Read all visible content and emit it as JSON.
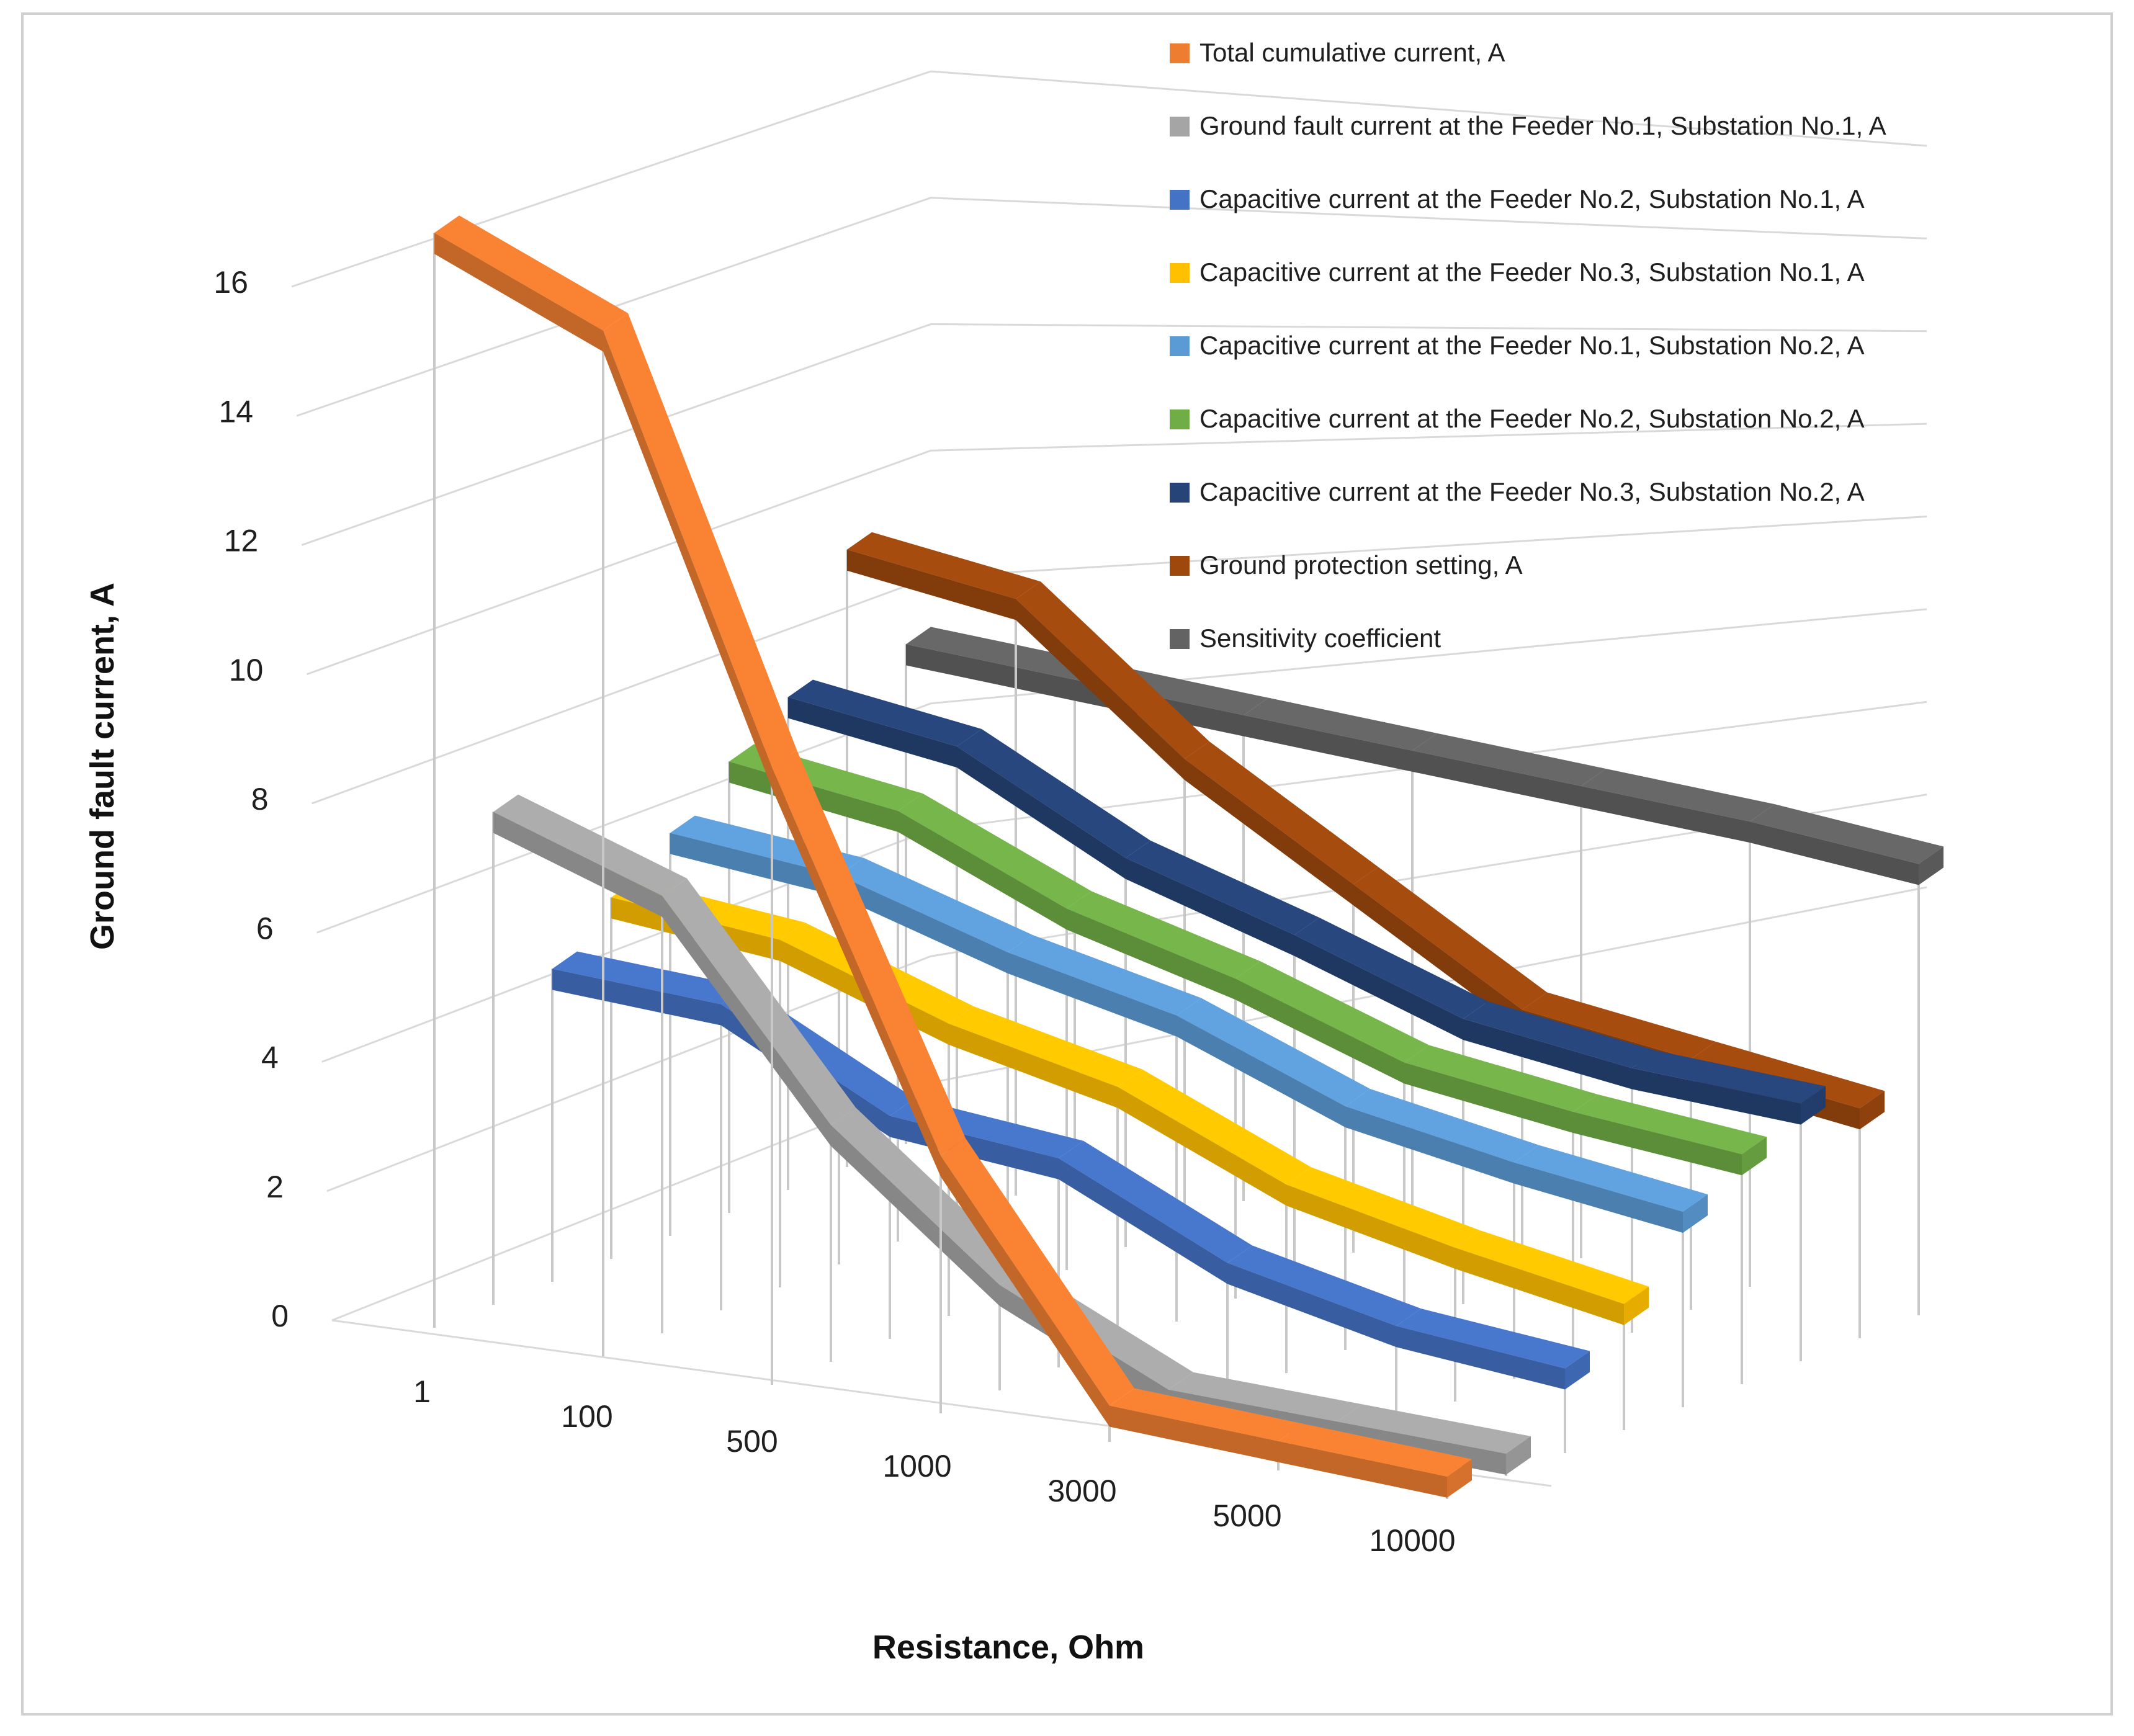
{
  "chart_data": {
    "type": "line",
    "style": "3d-ribbon",
    "title": "",
    "xlabel": "Resistance, Ohm",
    "ylabel": "Ground fault current, A",
    "ylim": [
      0,
      16
    ],
    "yticks": [
      0,
      2,
      4,
      6,
      8,
      10,
      12,
      14,
      16
    ],
    "categories": [
      "1",
      "100",
      "500",
      "1000",
      "3000",
      "5000",
      "10000"
    ],
    "legend_position": "top-right",
    "grid": true,
    "series": [
      {
        "name": "Total cumulative current, A",
        "color": "#ED7D31",
        "values": [
          15.6,
          14.6,
          8.7,
          3.5,
          0.3,
          0.2,
          0.1
        ]
      },
      {
        "name": "Ground fault current at the Feeder No.1, Substation No.1, A",
        "color": "#A5A5A5",
        "values": [
          6.9,
          6.1,
          3.2,
          1.3,
          0.2,
          0.15,
          0.1
        ]
      },
      {
        "name": "Capacitive current at the Feeder No.2, Substation No.1, A",
        "color": "#4472C4",
        "values": [
          4.3,
          4.2,
          3.0,
          2.8,
          1.7,
          1.2,
          1.0
        ]
      },
      {
        "name": "Capacitive current at the Feeder No.3, Substation No.1, A",
        "color": "#FFC000",
        "values": [
          5.0,
          4.8,
          4.0,
          3.5,
          2.5,
          2.0,
          1.6
        ]
      },
      {
        "name": "Capacitive current at the Feeder No.1, Substation No.2, A",
        "color": "#5B9BD5",
        "values": [
          5.6,
          5.4,
          4.7,
          4.2,
          3.3,
          2.9,
          2.6
        ]
      },
      {
        "name": "Capacitive current at the Feeder No.2, Substation No.2, A",
        "color": "#70AD47",
        "values": [
          6.3,
          6.0,
          5.0,
          4.4,
          3.6,
          3.3,
          3.1
        ]
      },
      {
        "name": "Capacitive current at the Feeder No.3, Substation No.2, A",
        "color": "#264478",
        "values": [
          6.9,
          6.6,
          5.4,
          4.7,
          3.9,
          3.6,
          3.5
        ]
      },
      {
        "name": "Ground protection setting, A",
        "color": "#9E480E",
        "values": [
          8.7,
          8.4,
          6.5,
          5.1,
          3.7,
          3.4,
          3.1
        ]
      },
      {
        "name": "Sensitivity coefficient",
        "color": "#636363",
        "values": [
          7.0,
          6.9,
          6.8,
          6.7,
          6.6,
          6.5,
          6.3
        ]
      }
    ]
  }
}
